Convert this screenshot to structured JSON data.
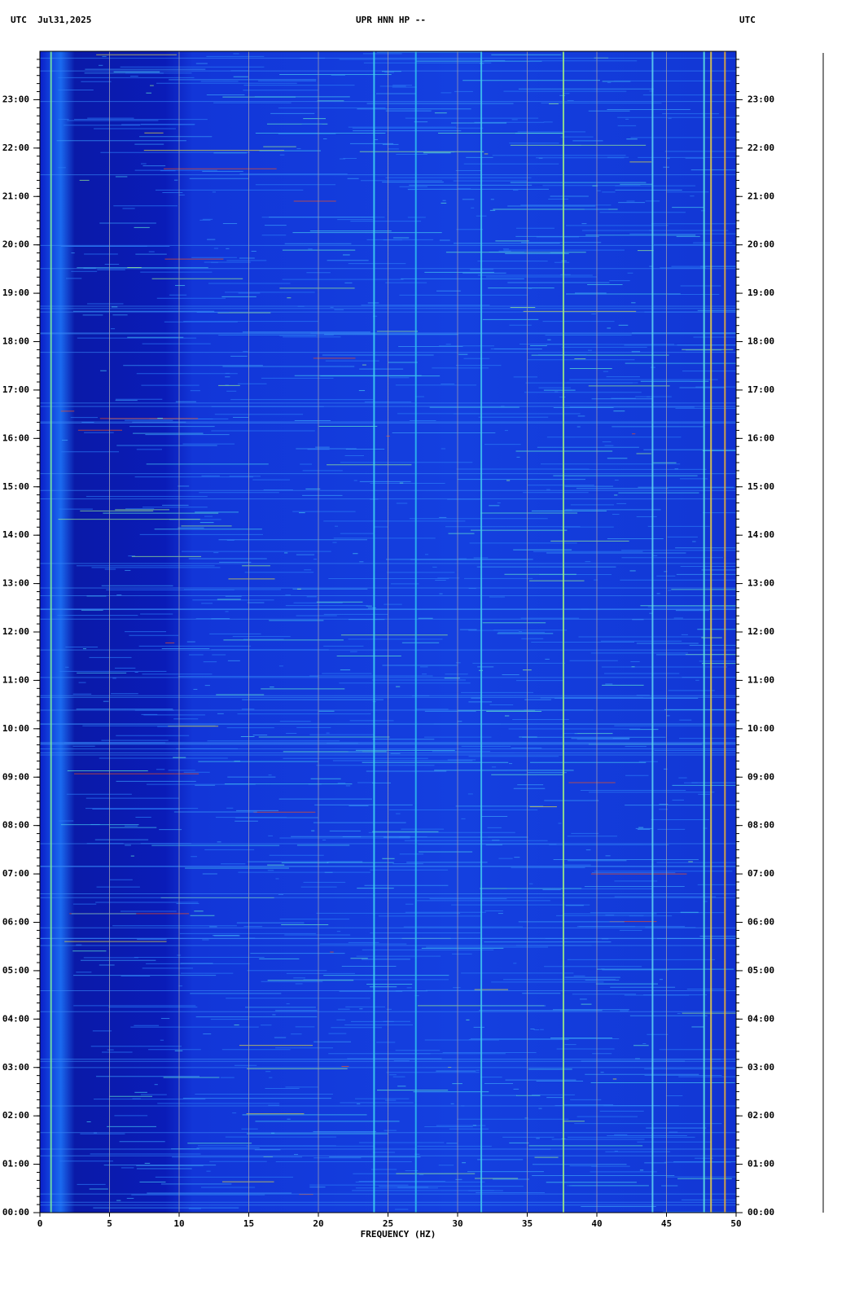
{
  "chart_data": {
    "type": "spectrogram",
    "title": "UPR HNN HP --",
    "left_header": "UTC  Jul31,2025",
    "right_header": "UTC",
    "x_label": "FREQUENCY (HZ)",
    "xlim": [
      0,
      50
    ],
    "xticks": [
      0,
      5,
      10,
      15,
      20,
      25,
      30,
      35,
      40,
      45,
      50
    ],
    "ylim": [
      0,
      24
    ],
    "yticks": [
      {
        "value": 0,
        "label": "00:00"
      },
      {
        "value": 1,
        "label": "01:00"
      },
      {
        "value": 2,
        "label": "02:00"
      },
      {
        "value": 3,
        "label": "03:00"
      },
      {
        "value": 4,
        "label": "04:00"
      },
      {
        "value": 5,
        "label": "05:00"
      },
      {
        "value": 6,
        "label": "06:00"
      },
      {
        "value": 7,
        "label": "07:00"
      },
      {
        "value": 8,
        "label": "08:00"
      },
      {
        "value": 9,
        "label": "09:00"
      },
      {
        "value": 10,
        "label": "10:00"
      },
      {
        "value": 11,
        "label": "11:00"
      },
      {
        "value": 12,
        "label": "12:00"
      },
      {
        "value": 13,
        "label": "13:00"
      },
      {
        "value": 14,
        "label": "14:00"
      },
      {
        "value": 15,
        "label": "15:00"
      },
      {
        "value": 16,
        "label": "16:00"
      },
      {
        "value": 17,
        "label": "17:00"
      },
      {
        "value": 18,
        "label": "18:00"
      },
      {
        "value": 19,
        "label": "19:00"
      },
      {
        "value": 20,
        "label": "20:00"
      },
      {
        "value": 21,
        "label": "21:00"
      },
      {
        "value": 22,
        "label": "22:00"
      },
      {
        "value": 23,
        "label": "23:00"
      }
    ],
    "x": [
      0.8,
      24.0,
      27.0,
      31.7,
      37.6,
      44.0,
      47.7,
      48.2,
      49.2
    ],
    "grid": true
  }
}
